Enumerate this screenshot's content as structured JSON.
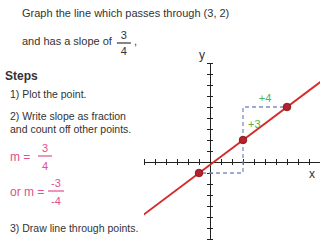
{
  "chart_data": {
    "type": "line",
    "title": "Graph the line which passes through (3, 2) and has a slope of",
    "annotations": [
      "3",
      "4",
      ",",
      "Steps",
      "1) Plot the point.",
      "2) Write slope as fraction",
      "and count off other points.",
      "m =",
      "3",
      "4",
      "or m =",
      "-3",
      "-4",
      "3) Draw line through points.",
      "+3",
      "+4"
    ],
    "x_label": "x",
    "y_label": "y",
    "xlim": [
      -6,
      10
    ],
    "ylim": [
      -7,
      9
    ],
    "xticks": [
      -6,
      -5,
      -4,
      -3,
      -2,
      -1,
      0,
      1,
      2,
      3,
      4,
      5,
      6,
      7,
      8,
      9,
      10
    ],
    "yticks": [
      -7,
      -6,
      -5,
      -4,
      -3,
      -2,
      -1,
      0,
      1,
      2,
      3,
      4,
      5,
      6,
      7,
      8,
      9
    ],
    "tick_labels": false,
    "grid": false,
    "series": [
      {
        "type": "line",
        "line_style": "dashed",
        "color": "#7d8fc4",
        "x": [
          3,
          3,
          7
        ],
        "values": [
          2,
          5,
          5
        ]
      },
      {
        "type": "line",
        "line_style": "dashed",
        "color": "#7d8fc4",
        "x": [
          3,
          3,
          -1
        ],
        "values": [
          2,
          -1,
          -1
        ]
      },
      {
        "type": "line",
        "line_style": "solid",
        "color": "#d42a2a",
        "x": [
          -9,
          11
        ],
        "values": [
          -7,
          8
        ]
      },
      {
        "type": "scatter",
        "marker": "circle",
        "color": "#b8202a",
        "x": [
          -1,
          3,
          7
        ],
        "values": [
          -1,
          2,
          5
        ]
      }
    ]
  }
}
